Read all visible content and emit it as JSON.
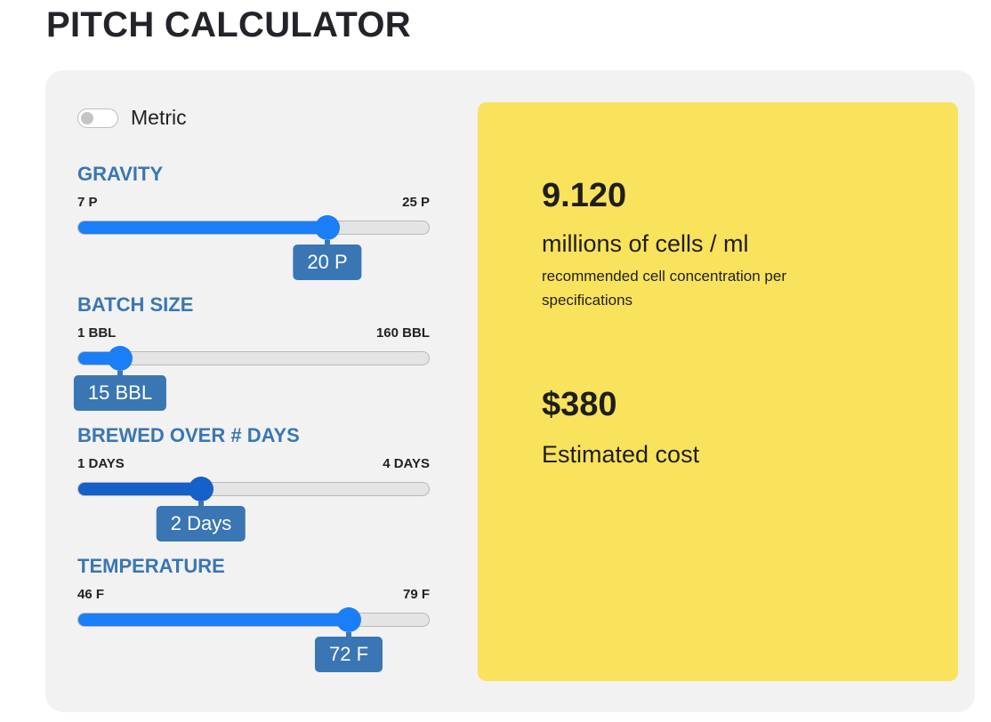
{
  "title": "PITCH CALCULATOR",
  "metric_toggle": {
    "label": "Metric",
    "on": false
  },
  "sliders": {
    "gravity": {
      "title": "GRAVITY",
      "min_label": "7 P",
      "max_label": "25 P",
      "value_label": "20 P",
      "fraction": 0.71
    },
    "batch": {
      "title": "BATCH SIZE",
      "min_label": "1 BBL",
      "max_label": "160 BBL",
      "value_label": "15 BBL",
      "fraction": 0.12
    },
    "days": {
      "title": "BREWED OVER # DAYS",
      "min_label": "1 DAYS",
      "max_label": "4 DAYS",
      "value_label": "2 Days",
      "fraction": 0.35
    },
    "temperature": {
      "title": "TEMPERATURE",
      "min_label": "46 F",
      "max_label": "79 F",
      "value_label": "72 F",
      "fraction": 0.77
    }
  },
  "results": {
    "cells_value": "9.120",
    "cells_unit": "millions of cells / ml",
    "cells_description": "recommended cell concentration per specifications",
    "cost_value": "$380",
    "cost_label": "Estimated cost"
  },
  "colors": {
    "accent": "#3a76b4",
    "slider_blue": "#1a7ef7",
    "result_background": "#f9e25c",
    "panel_background": "#f2f2f2"
  }
}
